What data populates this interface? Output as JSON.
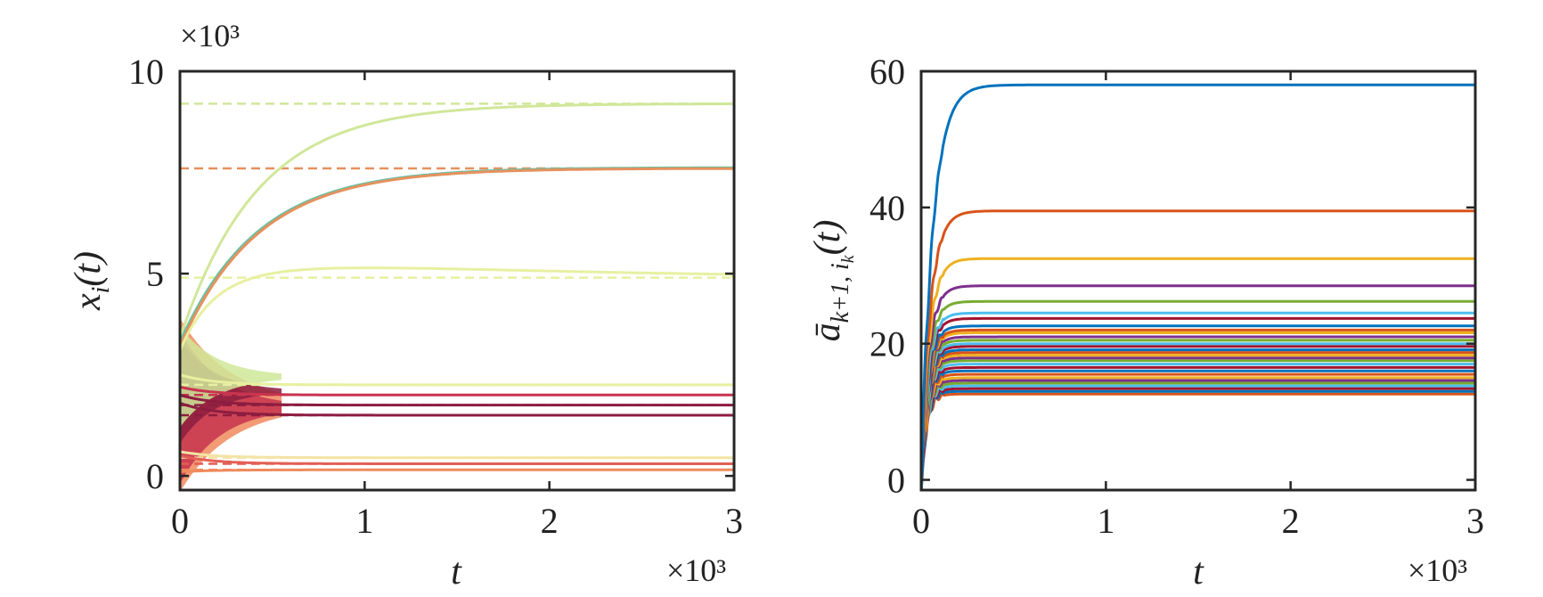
{
  "colors": {
    "axis": "#262626",
    "left_palette": [
      "#8c1d40",
      "#c8344f",
      "#e35f55",
      "#f08a5d",
      "#e6915e",
      "#66c2a5",
      "#d0e79a",
      "#e7f0a0",
      "#c4e18c",
      "#f3e3a5"
    ],
    "right_palette": [
      "#0072bd",
      "#d95319",
      "#edb120",
      "#7e2f8e",
      "#77ac30",
      "#4dbeee",
      "#a2142f"
    ]
  },
  "chart_data": [
    {
      "type": "line",
      "x_exponent_label": "×10³",
      "y_exponent_label": "×10³",
      "xlabel": "t",
      "ylabel": "x_i(t)",
      "xlim": [
        0,
        3
      ],
      "ylim": [
        -0.35,
        10
      ],
      "xticks": [
        "0",
        "1",
        "2",
        "3"
      ],
      "yticks": [
        "0",
        "5",
        "10"
      ],
      "xtick_values": [
        0,
        1,
        2,
        3
      ],
      "ytick_values": [
        0,
        5,
        10
      ],
      "equilibria": [
        {
          "value": 9.2,
          "color": "#d0e79a"
        },
        {
          "value": 7.6,
          "color": "#e6915e"
        },
        {
          "value": 4.9,
          "color": "#e7f0a0"
        },
        {
          "value": 2.25,
          "color": "#e7f0a0"
        },
        {
          "value": 2.0,
          "color": "#c8344f"
        },
        {
          "value": 1.75,
          "color": "#8c1d40"
        },
        {
          "value": 1.5,
          "color": "#8c1d40"
        },
        {
          "value": 0.45,
          "color": "#f3e3a5"
        },
        {
          "value": 0.3,
          "color": "#e35f55"
        },
        {
          "value": 0.15,
          "color": "#f08a5d"
        }
      ],
      "series": [
        {
          "start": 3.4,
          "final": 9.2,
          "overshoot": 0,
          "color": "#d0e79a"
        },
        {
          "start": 3.3,
          "final": 7.62,
          "overshoot": 0,
          "color": "#66c2a5"
        },
        {
          "start": 3.2,
          "final": 7.6,
          "overshoot": 0,
          "color": "#e6915e"
        },
        {
          "start": 3.1,
          "final": 4.9,
          "overshoot": 0.25,
          "color": "#e7f0a0"
        },
        {
          "start": 2.5,
          "final": 2.25,
          "overshoot": 0,
          "color": "#e7f0a0"
        },
        {
          "start": 2.2,
          "final": 2.0,
          "overshoot": 0,
          "color": "#c8344f"
        },
        {
          "start": 2.0,
          "final": 1.75,
          "overshoot": 0,
          "color": "#8c1d40"
        },
        {
          "start": 1.8,
          "final": 1.5,
          "overshoot": 0,
          "color": "#8c1d40"
        },
        {
          "start": 0.6,
          "final": 0.45,
          "overshoot": 0,
          "color": "#f3e3a5"
        },
        {
          "start": 0.5,
          "final": 0.3,
          "overshoot": 0,
          "color": "#e35f55"
        },
        {
          "start": 0.1,
          "final": 0.15,
          "overshoot": 0,
          "color": "#f08a5d"
        }
      ]
    },
    {
      "type": "line",
      "x_exponent_label": "×10³",
      "xlabel": "t",
      "ylabel": "ā_{k+1, i_k}(t)",
      "xlim": [
        0,
        3
      ],
      "ylim": [
        -1.5,
        60
      ],
      "xticks": [
        "0",
        "1",
        "2",
        "3"
      ],
      "yticks": [
        "0",
        "20",
        "40",
        "60"
      ],
      "xtick_values": [
        0,
        1,
        2,
        3
      ],
      "ytick_values": [
        0,
        20,
        40,
        60
      ],
      "final_values": [
        58,
        39.5,
        32.5,
        28.5,
        26.2,
        24.5,
        23.7,
        22.6,
        22.0,
        21.6,
        21.0,
        20.5,
        20.0,
        19.6,
        19.1,
        18.7,
        18.3,
        17.9,
        17.5,
        17.0,
        16.5,
        16.0,
        15.5,
        15.0,
        14.6,
        14.2,
        13.8,
        13.4,
        13.0,
        12.6
      ]
    }
  ]
}
